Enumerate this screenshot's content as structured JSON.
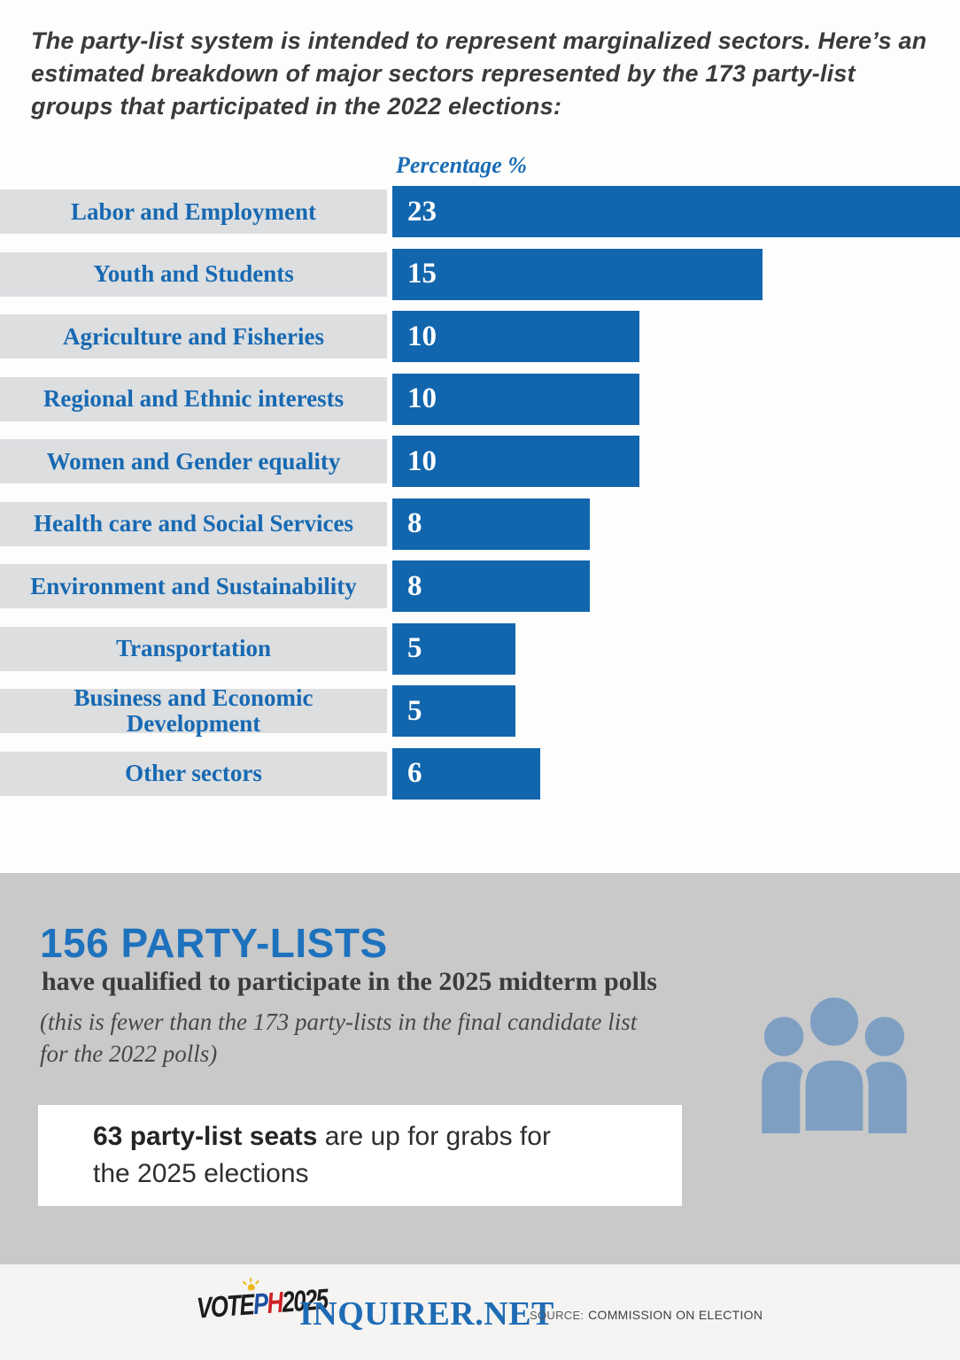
{
  "intro_text": "The party-list system is intended to represent marginalized sectors. Here’s an estimated breakdown of major sectors represented by the 173 party-list groups that participated in the 2022 elections:",
  "chart_data": {
    "type": "bar",
    "orientation": "horizontal",
    "title": "Percentage %",
    "categories": [
      "Labor and Employment",
      "Youth and Students",
      "Agriculture and Fisheries",
      "Regional and Ethnic interests",
      "Women and Gender equality",
      "Health care and Social Services",
      "Environment and Sustainability",
      "Transportation",
      "Business and Economic Development",
      "Other sectors"
    ],
    "values": [
      23,
      15,
      10,
      10,
      10,
      8,
      8,
      5,
      5,
      6
    ],
    "value_unit": "percent",
    "xlim": [
      0,
      23
    ],
    "value_labels_inside_bars": true,
    "legend": "none",
    "grid": "off"
  },
  "summary": {
    "headline": "156 PARTY-LISTS",
    "subheadline": "have qualified to participate in the 2025 midterm polls",
    "note": "(this is fewer than the 173 party-lists in the final candidate list for the 2022 polls)",
    "seats_bold": "63 party-list seats",
    "seats_rest": " are up for grabs for the 2025 elections"
  },
  "footer": {
    "logo_vote": "VOTE",
    "logo_p": "P",
    "logo_h": "H",
    "logo_year": "2025",
    "brand": "INQUIRER.NET",
    "source_label": "SOURCE:",
    "source_value": "COMMISSION ON ELECTION"
  },
  "colors": {
    "bar_blue": "#1266ad",
    "label_blue": "#1769b2",
    "axis_blue": "#1a6cb5",
    "band_gray": "#dcdee0",
    "section_gray": "#c9c9c9",
    "headline_blue": "#1e72bd",
    "brand_blue": "#1f6cb5",
    "icon_blue": "#7e9fc2",
    "text_dark": "#3a3a3a"
  }
}
